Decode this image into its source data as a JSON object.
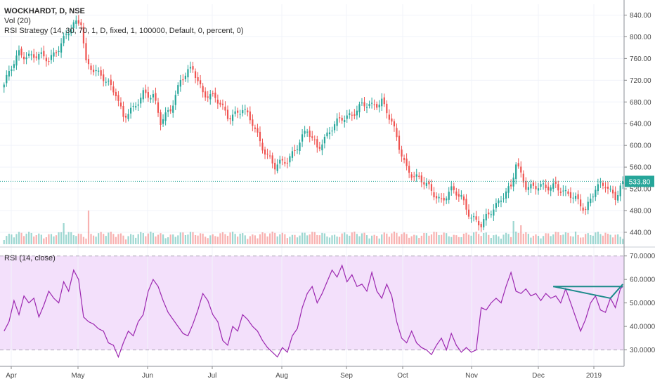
{
  "header": {
    "symbol_line": "WOCKHARDT, D, NSE",
    "vol_line": "Vol (20)",
    "strategy_line": "RSI Strategy (14, 30, 70, 1, D, fixed, 1, 100000, Default, 0, percent, 0)",
    "rsi_line": "RSI (14, close)"
  },
  "current_price": {
    "value": 533.8,
    "label": "533.80"
  },
  "colors": {
    "up": "#26a69a",
    "down": "#ef5350",
    "rsi_line": "#9c27b0",
    "rsi_band": "#f3e0fb",
    "trendline": "#1b8a8a"
  },
  "chart_data": [
    {
      "type": "candlestick",
      "panel": "price",
      "y_ticks": [
        "440.00",
        "480.00",
        "520.00",
        "560.00",
        "600.00",
        "640.00",
        "680.00",
        "720.00",
        "760.00",
        "800.00",
        "840.00"
      ],
      "ylim": [
        418,
        860
      ],
      "x_ticks": [
        "Apr",
        "May",
        "Jun",
        "Jul",
        "Aug",
        "Sep",
        "Oct",
        "Nov",
        "Dec",
        "2019"
      ],
      "close_anchors": [
        [
          0,
          712
        ],
        [
          6,
          770
        ],
        [
          12,
          765
        ],
        [
          18,
          758
        ],
        [
          24,
          795
        ],
        [
          28,
          820
        ],
        [
          31,
          830
        ],
        [
          33,
          755
        ],
        [
          38,
          728
        ],
        [
          42,
          715
        ],
        [
          45,
          700
        ],
        [
          48,
          650
        ],
        [
          52,
          665
        ],
        [
          56,
          700
        ],
        [
          60,
          690
        ],
        [
          63,
          640
        ],
        [
          67,
          670
        ],
        [
          71,
          720
        ],
        [
          76,
          740
        ],
        [
          80,
          700
        ],
        [
          85,
          685
        ],
        [
          90,
          655
        ],
        [
          96,
          665
        ],
        [
          100,
          640
        ],
        [
          105,
          590
        ],
        [
          109,
          558
        ],
        [
          114,
          575
        ],
        [
          118,
          600
        ],
        [
          122,
          625
        ],
        [
          126,
          598
        ],
        [
          131,
          625
        ],
        [
          136,
          650
        ],
        [
          140,
          660
        ],
        [
          144,
          672
        ],
        [
          148,
          672
        ],
        [
          152,
          685
        ],
        [
          156,
          640
        ],
        [
          159,
          595
        ],
        [
          162,
          560
        ],
        [
          165,
          545
        ],
        [
          170,
          525
        ],
        [
          176,
          500
        ],
        [
          180,
          515
        ],
        [
          184,
          505
        ],
        [
          188,
          470
        ],
        [
          192,
          450
        ],
        [
          196,
          480
        ],
        [
          200,
          505
        ],
        [
          204,
          520
        ],
        [
          206,
          565
        ],
        [
          210,
          528
        ],
        [
          214,
          523
        ],
        [
          218,
          520
        ],
        [
          222,
          530
        ],
        [
          226,
          510
        ],
        [
          230,
          500
        ],
        [
          234,
          485
        ],
        [
          238,
          520
        ],
        [
          242,
          525
        ],
        [
          246,
          508
        ],
        [
          249,
          533.8
        ]
      ],
      "volume": {
        "baseline_units": 1.0,
        "spikes": [
          [
            24,
            5.0
          ],
          [
            34,
            8.0
          ],
          [
            205,
            5.5
          ],
          [
            208,
            4.5
          ],
          [
            230,
            3.0
          ],
          [
            243,
            2.5
          ]
        ]
      }
    },
    {
      "type": "line",
      "panel": "rsi",
      "name": "RSI (14, close)",
      "y_ticks": [
        "30.0000",
        "40.0000",
        "50.0000",
        "60.0000",
        "70.0000"
      ],
      "ylim": [
        23,
        72
      ],
      "bands": [
        30,
        70
      ],
      "values": [
        [
          0,
          38
        ],
        [
          2,
          42
        ],
        [
          4,
          51
        ],
        [
          6,
          45
        ],
        [
          8,
          53
        ],
        [
          10,
          50
        ],
        [
          12,
          52
        ],
        [
          14,
          44
        ],
        [
          16,
          49
        ],
        [
          18,
          55
        ],
        [
          20,
          52
        ],
        [
          22,
          50
        ],
        [
          24,
          59
        ],
        [
          26,
          55
        ],
        [
          28,
          64
        ],
        [
          30,
          60
        ],
        [
          32,
          44
        ],
        [
          34,
          42
        ],
        [
          36,
          41
        ],
        [
          38,
          39
        ],
        [
          40,
          38
        ],
        [
          42,
          33
        ],
        [
          44,
          32
        ],
        [
          46,
          27
        ],
        [
          48,
          33
        ],
        [
          50,
          38
        ],
        [
          52,
          36
        ],
        [
          54,
          42
        ],
        [
          56,
          45
        ],
        [
          58,
          55
        ],
        [
          60,
          60
        ],
        [
          62,
          57
        ],
        [
          64,
          51
        ],
        [
          66,
          46
        ],
        [
          68,
          43
        ],
        [
          70,
          40
        ],
        [
          72,
          37
        ],
        [
          74,
          36
        ],
        [
          76,
          41
        ],
        [
          78,
          47
        ],
        [
          80,
          54
        ],
        [
          82,
          51
        ],
        [
          84,
          45
        ],
        [
          86,
          42
        ],
        [
          88,
          34
        ],
        [
          90,
          32
        ],
        [
          92,
          40
        ],
        [
          94,
          38
        ],
        [
          96,
          45
        ],
        [
          98,
          43
        ],
        [
          100,
          40
        ],
        [
          102,
          38
        ],
        [
          104,
          34
        ],
        [
          106,
          31
        ],
        [
          108,
          29
        ],
        [
          110,
          27
        ],
        [
          112,
          31
        ],
        [
          114,
          29
        ],
        [
          116,
          36
        ],
        [
          118,
          39
        ],
        [
          120,
          48
        ],
        [
          122,
          54
        ],
        [
          124,
          57
        ],
        [
          126,
          50
        ],
        [
          128,
          54
        ],
        [
          130,
          59
        ],
        [
          132,
          64
        ],
        [
          134,
          61
        ],
        [
          136,
          66
        ],
        [
          138,
          59
        ],
        [
          140,
          62
        ],
        [
          142,
          57
        ],
        [
          144,
          58
        ],
        [
          146,
          55
        ],
        [
          148,
          63
        ],
        [
          150,
          55
        ],
        [
          152,
          52
        ],
        [
          154,
          58
        ],
        [
          156,
          53
        ],
        [
          158,
          42
        ],
        [
          160,
          35
        ],
        [
          162,
          33
        ],
        [
          164,
          38
        ],
        [
          166,
          33
        ],
        [
          168,
          31
        ],
        [
          170,
          30
        ],
        [
          172,
          28
        ],
        [
          174,
          32
        ],
        [
          176,
          35
        ],
        [
          178,
          30
        ],
        [
          180,
          37
        ],
        [
          182,
          32
        ],
        [
          184,
          29
        ],
        [
          186,
          31
        ],
        [
          188,
          29
        ],
        [
          190,
          30
        ],
        [
          192,
          48
        ],
        [
          194,
          47
        ],
        [
          196,
          50
        ],
        [
          198,
          52
        ],
        [
          200,
          50
        ],
        [
          202,
          57
        ],
        [
          204,
          63
        ],
        [
          206,
          55
        ],
        [
          208,
          54
        ],
        [
          210,
          56
        ],
        [
          212,
          53
        ],
        [
          214,
          54
        ],
        [
          216,
          51
        ],
        [
          218,
          54
        ],
        [
          220,
          52
        ],
        [
          222,
          53
        ],
        [
          224,
          50
        ],
        [
          226,
          56
        ],
        [
          228,
          50
        ],
        [
          230,
          44
        ],
        [
          232,
          38
        ],
        [
          234,
          43
        ],
        [
          236,
          50
        ],
        [
          238,
          53
        ],
        [
          240,
          47
        ],
        [
          242,
          46
        ],
        [
          244,
          52
        ],
        [
          246,
          48
        ],
        [
          248,
          56
        ],
        [
          249,
          57
        ]
      ],
      "trendlines": [
        {
          "from": [
            221,
            57
          ],
          "to": [
            249,
            57
          ]
        },
        {
          "from": [
            221,
            57
          ],
          "to": [
            244,
            52
          ]
        },
        {
          "from": [
            244,
            52
          ],
          "to": [
            249,
            58
          ]
        }
      ]
    }
  ]
}
